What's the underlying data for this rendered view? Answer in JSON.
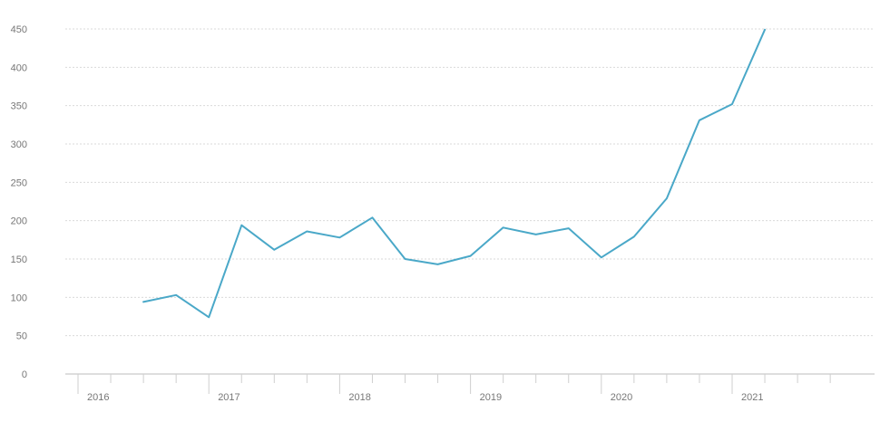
{
  "chart_data": {
    "type": "line",
    "title": "",
    "xlabel": "",
    "ylabel": "",
    "ylim": [
      0,
      450
    ],
    "yticks": [
      0,
      50,
      100,
      150,
      200,
      250,
      300,
      350,
      400,
      450
    ],
    "year_labels": [
      "2016",
      "2017",
      "2018",
      "2019",
      "2020",
      "2021"
    ],
    "grid": true,
    "legend": "none",
    "color": "#4aa8c8",
    "x": [
      "2016-Q2",
      "2016-Q3",
      "2016-Q4",
      "2017-Q1",
      "2017-Q2",
      "2017-Q3",
      "2017-Q4",
      "2018-Q1",
      "2018-Q2",
      "2018-Q3",
      "2018-Q4",
      "2019-Q1",
      "2019-Q2",
      "2019-Q3",
      "2019-Q4",
      "2020-Q1",
      "2020-Q2",
      "2020-Q3",
      "2020-Q4",
      "2021-Q1"
    ],
    "series": [
      {
        "values": [
          94,
          103,
          74,
          194,
          162,
          186,
          178,
          204,
          150,
          143,
          154,
          191,
          182,
          190,
          152,
          179,
          229,
          331,
          352,
          449
        ]
      }
    ]
  }
}
